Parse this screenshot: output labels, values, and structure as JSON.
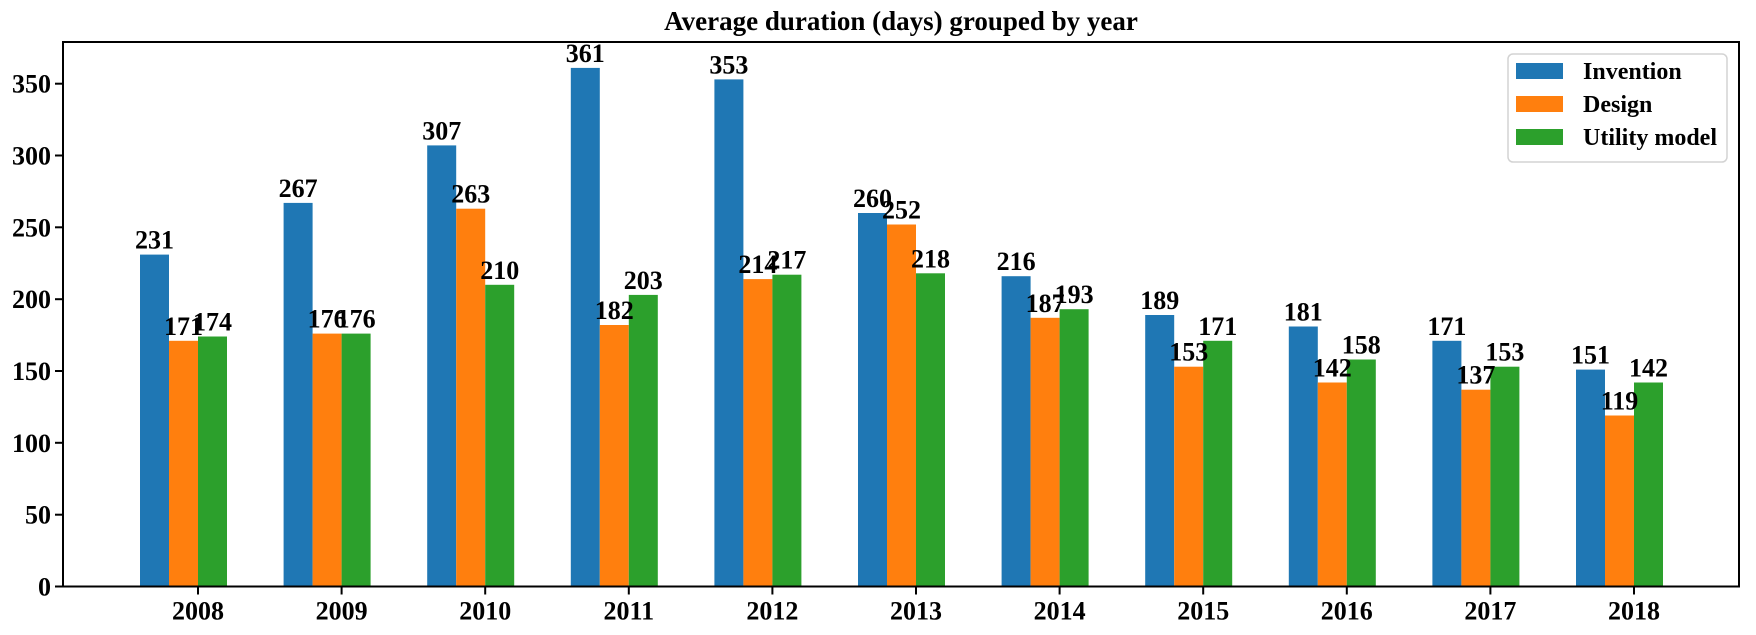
{
  "chart_data": {
    "type": "bar",
    "title": "Average duration (days) grouped by year",
    "xlabel": "",
    "ylabel": "",
    "categories": [
      "2008",
      "2009",
      "2010",
      "2011",
      "2012",
      "2013",
      "2014",
      "2015",
      "2016",
      "2017",
      "2018"
    ],
    "series": [
      {
        "name": "Invention",
        "color": "#1f77b4",
        "values": [
          231,
          267,
          307,
          361,
          353,
          260,
          216,
          189,
          181,
          171,
          151
        ]
      },
      {
        "name": "Design",
        "color": "#ff7f0e",
        "values": [
          171,
          176,
          263,
          182,
          214,
          252,
          187,
          153,
          142,
          137,
          119
        ]
      },
      {
        "name": "Utility model",
        "color": "#2ca02c",
        "values": [
          174,
          176,
          210,
          203,
          217,
          218,
          193,
          171,
          158,
          153,
          142
        ]
      }
    ],
    "yticks": [
      0,
      50,
      100,
      150,
      200,
      250,
      300,
      350
    ],
    "ylim": [
      0,
      379
    ],
    "grid": false,
    "bar_value_labels": true,
    "legend_position": "upper right",
    "axis_color": "#000000",
    "legend_border_color": "#d3d3d3",
    "background": "#ffffff"
  }
}
